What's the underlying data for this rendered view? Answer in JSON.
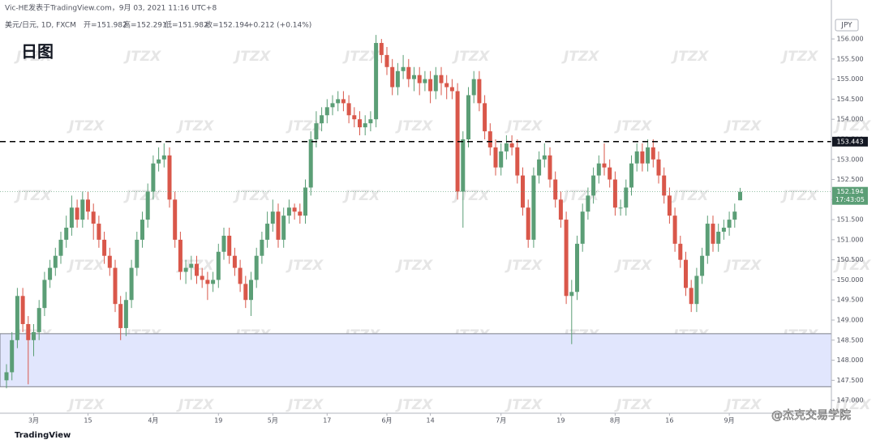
{
  "header": "Vic-HE发表于TradingView.com，9月 03, 2021 11:16 UTC+8",
  "chart_data": {
    "type": "candlestick",
    "title": "日图",
    "symbol": "美元/日元, 1D, FXCM",
    "legend_values": [
      "开=151.982",
      "高=152.291",
      "低=151.982",
      "收=152.194",
      "+0.212 (+0.14%)"
    ],
    "currency": "JPY",
    "categories": [
      null,
      null,
      null,
      null,
      null,
      "3月",
      null,
      null,
      null,
      null,
      null,
      null,
      null,
      null,
      null,
      "15",
      null,
      null,
      null,
      null,
      null,
      null,
      null,
      null,
      null,
      null,
      null,
      "4月",
      null,
      null,
      null,
      null,
      null,
      null,
      null,
      null,
      null,
      null,
      null,
      "19",
      null,
      null,
      null,
      null,
      null,
      null,
      null,
      null,
      null,
      "5月",
      null,
      null,
      null,
      null,
      null,
      null,
      null,
      null,
      null,
      "17",
      null,
      null,
      null,
      null,
      null,
      null,
      null,
      null,
      null,
      null,
      "6月",
      null,
      null,
      null,
      null,
      null,
      null,
      null,
      "14",
      null,
      null,
      null,
      null,
      null,
      null,
      null,
      null,
      null,
      null,
      null,
      null,
      "7月",
      null,
      null,
      null,
      null,
      null,
      null,
      null,
      null,
      null,
      null,
      "19",
      null,
      null,
      null,
      null,
      null,
      null,
      null,
      null,
      null,
      "8月",
      null,
      null,
      null,
      null,
      null,
      null,
      null,
      null,
      null,
      "16",
      null,
      null,
      null,
      null,
      null,
      null,
      null,
      null,
      null,
      null,
      "9月",
      null,
      null
    ],
    "open": [
      147.5,
      147.7,
      148.5,
      149.6,
      148.9,
      148.5,
      148.7,
      149.3,
      150.0,
      150.3,
      150.6,
      151.0,
      151.3,
      151.8,
      151.5,
      152.0,
      151.7,
      151.4,
      151.0,
      150.6,
      150.3,
      149.4,
      148.8,
      149.5,
      150.3,
      151.0,
      151.5,
      152.2,
      152.9,
      153.0,
      153.1,
      152.0,
      151.0,
      150.2,
      150.3,
      150.4,
      150.1,
      150.0,
      149.9,
      150.0,
      150.7,
      151.1,
      150.6,
      150.3,
      149.9,
      149.5,
      150.0,
      150.6,
      151.0,
      151.4,
      151.7,
      151.0,
      151.6,
      151.8,
      151.7,
      151.6,
      152.3,
      153.5,
      153.9,
      154.1,
      154.3,
      154.4,
      154.5,
      154.4,
      154.1,
      154.0,
      153.8,
      153.9,
      154.0,
      155.9,
      155.6,
      155.3,
      154.8,
      155.2,
      155.3,
      155.0,
      155.1,
      154.9,
      155.0,
      154.7,
      155.1,
      154.9,
      154.8,
      154.7,
      152.2,
      153.5,
      154.6,
      155.0,
      154.4,
      153.7,
      153.3,
      152.8,
      153.2,
      153.4,
      153.3,
      152.6,
      151.8,
      151.0,
      152.6,
      153.0,
      153.1,
      152.5,
      152.0,
      151.5,
      149.6,
      149.7,
      150.9,
      151.7,
      152.1,
      152.6,
      152.9,
      152.8,
      152.5,
      151.8,
      151.8,
      152.3,
      152.9,
      153.2,
      152.9,
      153.3,
      153.0,
      152.6,
      152.1,
      151.6,
      150.9,
      150.5,
      149.8,
      149.4,
      150.1,
      150.6,
      151.4,
      150.9,
      151.2,
      151.3,
      151.5,
      151.982
    ],
    "high": [
      147.9,
      148.7,
      149.8,
      149.8,
      149.1,
      148.9,
      149.5,
      150.2,
      150.5,
      150.8,
      151.2,
      151.6,
      152.1,
      152.0,
      152.2,
      152.2,
      151.9,
      151.6,
      151.2,
      150.8,
      150.5,
      149.6,
      149.7,
      150.5,
      151.2,
      151.7,
      152.4,
      153.1,
      153.3,
      153.4,
      153.3,
      152.2,
      151.2,
      150.5,
      150.6,
      150.6,
      150.3,
      150.2,
      150.2,
      150.9,
      151.3,
      151.3,
      150.8,
      150.5,
      150.1,
      150.2,
      150.8,
      151.2,
      151.7,
      152.0,
      151.9,
      151.8,
      152.0,
      151.9,
      151.9,
      152.5,
      153.7,
      154.2,
      154.3,
      154.5,
      154.6,
      154.7,
      154.7,
      154.6,
      154.3,
      154.2,
      154.1,
      154.2,
      156.1,
      156.0,
      155.8,
      155.5,
      155.4,
      155.6,
      155.5,
      155.3,
      155.3,
      155.2,
      155.2,
      155.3,
      155.3,
      155.1,
      155.0,
      154.9,
      153.7,
      154.8,
      155.2,
      155.2,
      154.6,
      153.9,
      153.5,
      153.4,
      153.6,
      153.6,
      153.5,
      152.8,
      152.0,
      152.8,
      153.2,
      153.4,
      153.3,
      152.7,
      152.2,
      151.7,
      150.0,
      151.1,
      151.9,
      152.3,
      152.8,
      153.1,
      153.4,
      153.0,
      152.7,
      152.0,
      152.5,
      153.1,
      153.4,
      153.4,
      153.5,
      153.5,
      153.2,
      152.8,
      152.3,
      151.8,
      151.1,
      150.7,
      150.0,
      150.3,
      150.8,
      151.6,
      151.6,
      151.4,
      151.5,
      151.7,
      151.9,
      152.291
    ],
    "low": [
      147.3,
      147.5,
      148.3,
      148.7,
      147.4,
      148.1,
      148.5,
      149.1,
      149.8,
      150.1,
      150.4,
      150.8,
      151.1,
      151.3,
      151.3,
      151.5,
      151.0,
      150.8,
      150.4,
      150.1,
      149.2,
      148.5,
      148.6,
      149.3,
      150.1,
      150.8,
      151.3,
      152.0,
      152.7,
      152.8,
      151.8,
      150.8,
      150.0,
      149.9,
      150.0,
      149.9,
      149.8,
      149.5,
      149.7,
      149.8,
      150.5,
      150.4,
      150.1,
      149.7,
      149.3,
      149.1,
      149.8,
      150.4,
      150.8,
      151.2,
      150.8,
      150.8,
      151.4,
      151.5,
      151.4,
      151.4,
      152.1,
      153.3,
      153.7,
      153.9,
      154.1,
      154.2,
      154.2,
      153.9,
      153.8,
      153.6,
      153.6,
      153.7,
      153.8,
      155.4,
      155.1,
      154.6,
      154.6,
      155.0,
      154.8,
      154.7,
      154.6,
      154.7,
      154.4,
      154.5,
      154.6,
      154.5,
      154.5,
      152.0,
      151.3,
      153.3,
      154.4,
      154.2,
      153.5,
      153.1,
      152.6,
      152.6,
      153.0,
      153.1,
      152.4,
      151.6,
      150.8,
      150.8,
      152.4,
      152.8,
      152.3,
      151.8,
      151.3,
      149.4,
      148.4,
      149.5,
      150.7,
      151.5,
      151.9,
      152.4,
      152.6,
      152.3,
      151.6,
      151.6,
      151.6,
      152.1,
      152.7,
      152.7,
      152.7,
      152.8,
      152.4,
      151.9,
      151.4,
      150.7,
      150.3,
      149.6,
      149.2,
      149.2,
      149.9,
      150.4,
      150.7,
      150.7,
      151.0,
      151.1,
      151.3,
      151.982
    ],
    "close": [
      147.7,
      148.5,
      149.6,
      148.9,
      148.5,
      148.7,
      149.3,
      150.0,
      150.3,
      150.6,
      151.0,
      151.3,
      151.8,
      151.5,
      152.0,
      151.7,
      151.4,
      151.0,
      150.6,
      150.3,
      149.4,
      148.8,
      149.5,
      150.3,
      151.0,
      151.5,
      152.2,
      152.9,
      153.0,
      153.1,
      152.0,
      151.0,
      150.2,
      150.3,
      150.4,
      150.1,
      150.0,
      149.9,
      150.0,
      150.7,
      151.1,
      150.6,
      150.3,
      149.9,
      149.5,
      150.0,
      150.6,
      151.0,
      151.4,
      151.7,
      151.0,
      151.6,
      151.8,
      151.7,
      151.6,
      152.3,
      153.5,
      153.9,
      154.1,
      154.3,
      154.4,
      154.5,
      154.4,
      154.1,
      154.0,
      153.8,
      153.9,
      154.0,
      155.9,
      155.6,
      155.3,
      154.8,
      155.2,
      155.3,
      155.0,
      155.1,
      154.9,
      155.0,
      154.7,
      155.1,
      154.9,
      154.8,
      154.7,
      152.2,
      153.5,
      154.6,
      155.0,
      154.4,
      153.7,
      153.3,
      152.8,
      153.2,
      153.4,
      153.3,
      152.6,
      151.8,
      151.0,
      152.6,
      153.0,
      153.1,
      152.5,
      152.0,
      151.5,
      149.6,
      149.7,
      150.9,
      151.7,
      152.1,
      152.6,
      152.9,
      152.8,
      152.5,
      151.8,
      151.8,
      152.3,
      152.9,
      153.2,
      152.9,
      153.3,
      153.0,
      152.6,
      152.1,
      151.6,
      150.9,
      150.5,
      149.8,
      149.4,
      150.1,
      150.6,
      151.4,
      150.9,
      151.2,
      151.3,
      151.5,
      151.7,
      152.194
    ],
    "up_color": "#5b9e76",
    "down_color": "#d9574a",
    "ylim": [
      146.68,
      156.97
    ],
    "yticks": [
      {
        "value": 147,
        "label": "147.000"
      },
      {
        "value": 147.5,
        "label": "147.500"
      },
      {
        "value": 148,
        "label": "148.000"
      },
      {
        "value": 148.5,
        "label": "148.500"
      },
      {
        "value": 149,
        "label": "149.000"
      },
      {
        "value": 149.5,
        "label": "149.500"
      },
      {
        "value": 150,
        "label": "150.000"
      },
      {
        "value": 150.5,
        "label": "150.500"
      },
      {
        "value": 151,
        "label": "151.000"
      },
      {
        "value": 151.5,
        "label": "151.500"
      },
      {
        "value": 152,
        "label": "152.000"
      },
      {
        "value": 152.5,
        "label": "152.500"
      },
      {
        "value": 153,
        "label": "153.000"
      },
      {
        "value": 153.5,
        "label": "153.500"
      },
      {
        "value": 154,
        "label": "154.000"
      },
      {
        "value": 154.5,
        "label": "154.500"
      },
      {
        "value": 155,
        "label": "155.000"
      },
      {
        "value": 155.5,
        "label": "155.500"
      },
      {
        "value": 156,
        "label": "156.000"
      }
    ],
    "hline": 153.443,
    "zone": [
      147.34,
      148.66
    ],
    "zone_color": "#e1e6fd",
    "countdown": "17:43:05",
    "grid": false
  },
  "watermark": "JTZX",
  "footer": {
    "logo": "TradingView",
    "credit": "@杰克交易学院"
  }
}
